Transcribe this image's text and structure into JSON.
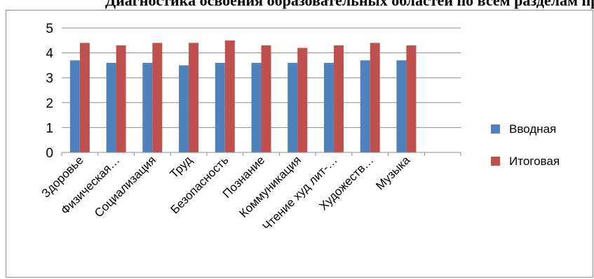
{
  "header": {
    "title_fragment": "Диагностика освоения образовательных областей по всем разделам программы в средней группе"
  },
  "chart_data": {
    "type": "bar",
    "categories": [
      "Здоровье",
      "Физическая…",
      "Социализация",
      "Труд",
      "Безопасность",
      "Познание",
      "Коммуникация",
      "Чтение худ лит-…",
      "Художеств…",
      "Музыка",
      ""
    ],
    "series": [
      {
        "name": "Вводная",
        "color": "#4f81bd",
        "values": [
          3.7,
          3.6,
          3.6,
          3.5,
          3.6,
          3.6,
          3.6,
          3.6,
          3.7,
          3.7,
          null
        ]
      },
      {
        "name": "Итоговая",
        "color": "#c0504d",
        "values": [
          4.4,
          4.3,
          4.4,
          4.4,
          4.5,
          4.3,
          4.2,
          4.3,
          4.4,
          4.3,
          null
        ]
      }
    ],
    "y_ticks": [
      "0",
      "1",
      "2",
      "3",
      "4",
      "5"
    ],
    "ylim": [
      0,
      5
    ],
    "grid": true,
    "legend_position": "right"
  }
}
